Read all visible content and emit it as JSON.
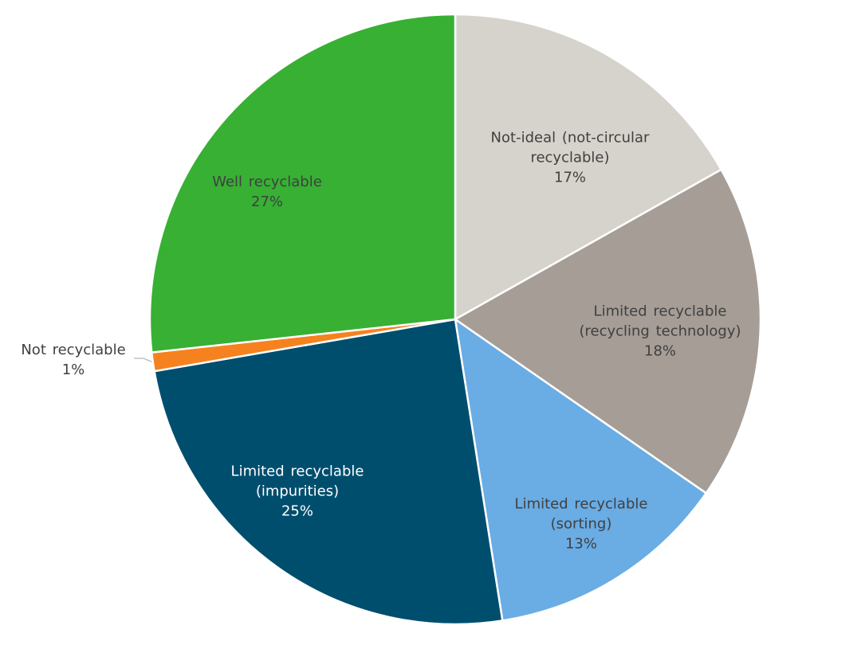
{
  "chart_data": {
    "type": "pie",
    "categories": [
      "Not-ideal (not-circular\nrecyclable)",
      "Limited recyclable\n(recycling technology)",
      "Limited recyclable\n(sorting)",
      "Limited recyclable\n(impurities)",
      "Not recyclable",
      "Well recyclable"
    ],
    "values": [
      17,
      18,
      13,
      25,
      1,
      27
    ],
    "value_labels": [
      "17%",
      "18%",
      "13%",
      "25%",
      "1%",
      "27%"
    ],
    "colors": [
      "#d6d3cc",
      "#a59d96",
      "#6aace4",
      "#004e6e",
      "#f5821f",
      "#37b034"
    ]
  }
}
